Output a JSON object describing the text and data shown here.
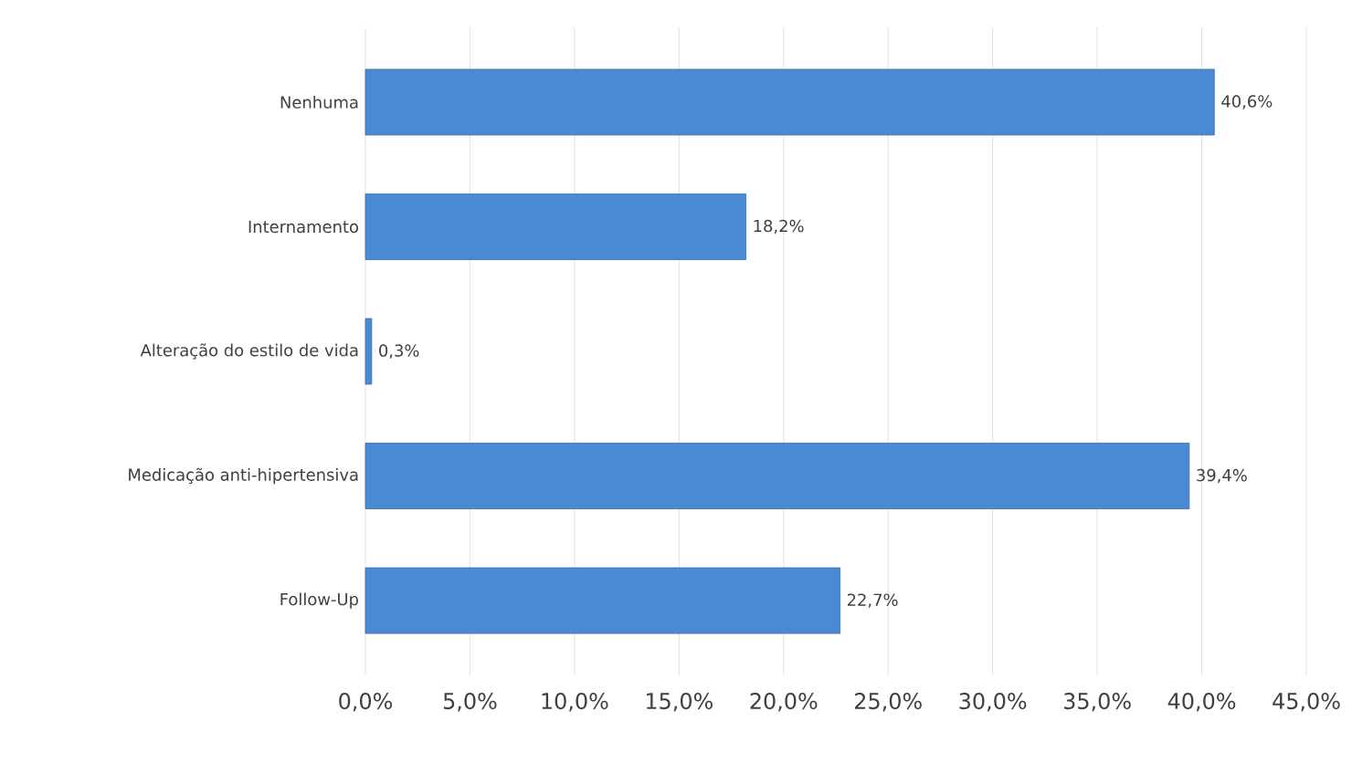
{
  "chart_data": {
    "type": "bar",
    "orientation": "horizontal",
    "categories": [
      "Nenhuma",
      "Internamento",
      "Alteração do estilo de vida",
      "Medicação anti-hipertensiva",
      "Follow-Up"
    ],
    "values": [
      40.6,
      18.2,
      0.3,
      39.4,
      22.7
    ],
    "value_labels": [
      "40,6%",
      "18,2%",
      "0,3%",
      "39,4%",
      "22,7%"
    ],
    "color": "#4a8ad4",
    "xlim": [
      0,
      45
    ],
    "xticks": [
      {
        "value": 0,
        "label": "0,0%"
      },
      {
        "value": 5,
        "label": "5,0%"
      },
      {
        "value": 10,
        "label": "10,0%"
      },
      {
        "value": 15,
        "label": "15,0%"
      },
      {
        "value": 20,
        "label": "20,0%"
      },
      {
        "value": 25,
        "label": "25,0%"
      },
      {
        "value": 30,
        "label": "30,0%"
      },
      {
        "value": 35,
        "label": "35,0%"
      },
      {
        "value": 40,
        "label": "40,0%"
      },
      {
        "value": 45,
        "label": "45,0%"
      }
    ],
    "grid": "x"
  }
}
